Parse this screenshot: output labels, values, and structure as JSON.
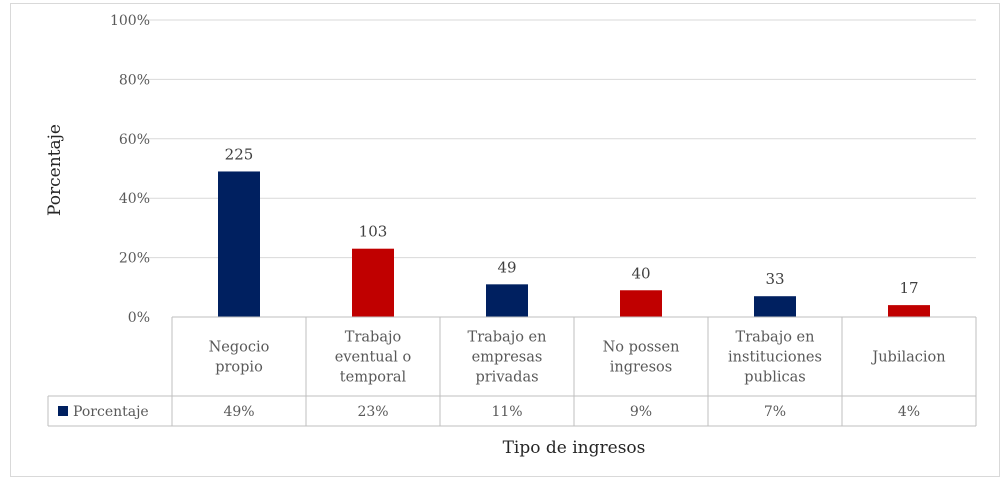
{
  "chart_data": {
    "type": "bar",
    "title": "",
    "xlabel": "Tipo de ingresos",
    "ylabel": "Porcentaje",
    "ylim": [
      0,
      1
    ],
    "yticks": [
      "0%",
      "20%",
      "40%",
      "60%",
      "80%",
      "100%"
    ],
    "grid": true,
    "categories": [
      [
        "Negocio",
        "propio"
      ],
      [
        "Trabajo",
        "eventual o",
        "temporal"
      ],
      [
        "Trabajo en",
        "empresas",
        "privadas"
      ],
      [
        "No possen",
        "ingresos"
      ],
      [
        "Trabajo en",
        "instituciones",
        "publicas"
      ],
      [
        "Jubilacion"
      ]
    ],
    "series": [
      {
        "name": "Porcentaje",
        "values": [
          0.49,
          0.23,
          0.11,
          0.09,
          0.07,
          0.04
        ],
        "table_labels": [
          "49%",
          "23%",
          "11%",
          "9%",
          "7%",
          "4%"
        ],
        "data_labels": [
          "225",
          "103",
          "49",
          "40",
          "33",
          "17"
        ]
      }
    ],
    "bar_colors": [
      "#002060",
      "#c00000",
      "#002060",
      "#c00000",
      "#002060",
      "#c00000"
    ],
    "legend_color": "#002060",
    "data_table": true
  }
}
